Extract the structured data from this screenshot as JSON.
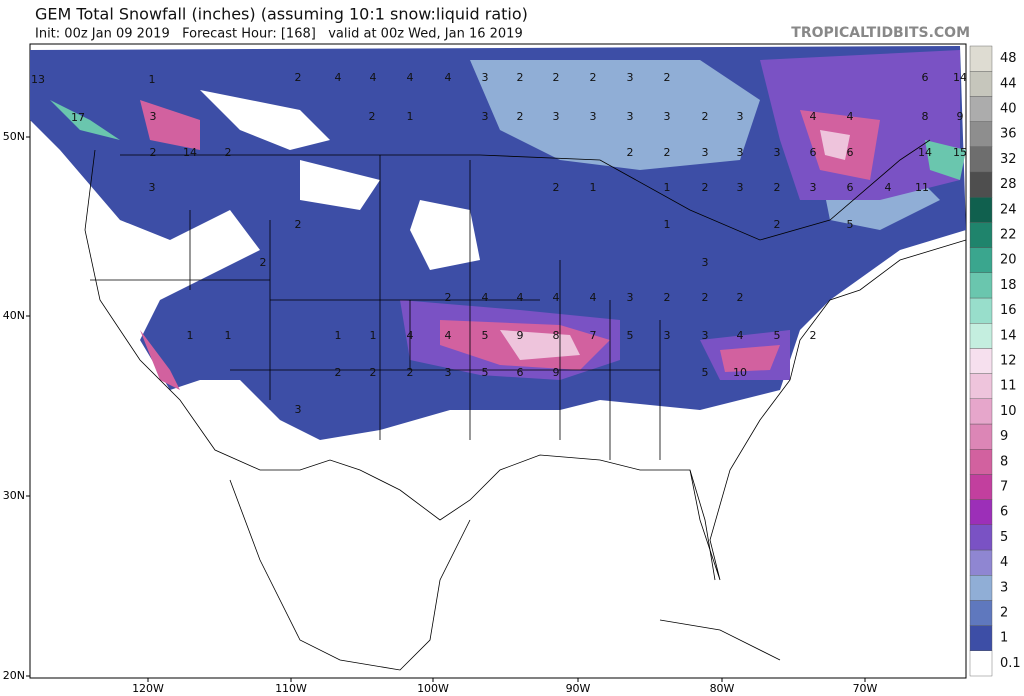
{
  "header": {
    "title": "GEM Total Snowfall (inches) (assuming 10:1 snow:liquid ratio)",
    "subtitle": "Init: 00z Jan 09 2019   Forecast Hour: [168]   valid at 00z Wed, Jan 16 2019",
    "site": "TROPICALTIDBITS.COM"
  },
  "latitude_labels": [
    "50N",
    "40N",
    "30N",
    "20N"
  ],
  "longitude_labels": [
    "120W",
    "110W",
    "100W",
    "90W",
    "80W",
    "70W"
  ],
  "colorbar": {
    "levels": [
      0.1,
      1,
      2,
      3,
      4,
      5,
      6,
      7,
      8,
      9,
      10,
      11,
      12,
      14,
      16,
      18,
      20,
      22,
      24,
      28,
      32,
      36,
      40,
      44,
      48
    ],
    "colors": [
      "#ffffff",
      "#3d4ea6",
      "#5f78be",
      "#90aed6",
      "#8f86d2",
      "#7a52c4",
      "#9c2fb8",
      "#c23f9e",
      "#d2619f",
      "#dc86b6",
      "#e6a6cb",
      "#eec4dc",
      "#f6e0ee",
      "#c4eedf",
      "#98decb",
      "#6ac6ae",
      "#3aa68e",
      "#1f846c",
      "#10604e",
      "#4e4e4e",
      "#6e6e6e",
      "#8e8e8e",
      "#acacac",
      "#c6c6bc",
      "#dedcd2"
    ]
  },
  "map_labels": [
    "13",
    "17",
    "1",
    "3",
    "14",
    "2",
    "2",
    "3",
    "2",
    "4",
    "4",
    "4",
    "4",
    "3",
    "2",
    "2",
    "2",
    "3",
    "2",
    "2",
    "1",
    "3",
    "2",
    "3",
    "3",
    "3",
    "3",
    "2",
    "3",
    "4",
    "4",
    "8",
    "9",
    "14",
    "6",
    "6",
    "6",
    "14",
    "15",
    "11",
    "6",
    "3",
    "2",
    "3",
    "2",
    "1",
    "1",
    "2",
    "2",
    "2",
    "3",
    "3",
    "3",
    "2",
    "2",
    "2",
    "4",
    "4",
    "4",
    "4",
    "3",
    "2",
    "2",
    "2",
    "1",
    "1",
    "1",
    "1",
    "4",
    "4",
    "5",
    "9",
    "8",
    "7",
    "5",
    "3",
    "3",
    "4",
    "5",
    "2",
    "2",
    "2",
    "2",
    "3",
    "5",
    "6",
    "9",
    "5",
    "10",
    "3",
    "3",
    "1",
    "2",
    "5",
    "4"
  ]
}
